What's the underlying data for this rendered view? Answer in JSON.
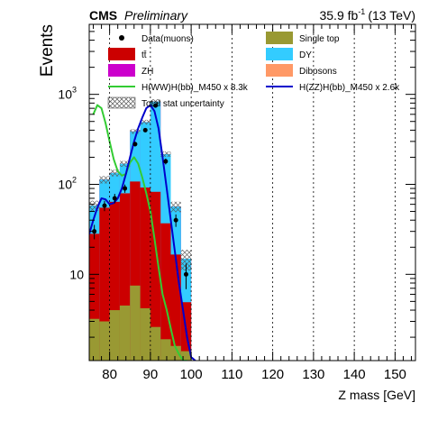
{
  "header": {
    "experiment": "CMS",
    "status": "Preliminary",
    "lumi_value": "35.9 fb",
    "lumi_exponent": "-1",
    "energy": "(13 TeV)"
  },
  "chart_data": {
    "type": "histogram-stack",
    "xlabel": "Z mass [GeV]",
    "ylabel": "Events",
    "xlim": [
      75,
      155
    ],
    "ylim": [
      1.1,
      6000
    ],
    "yscale": "log",
    "grid": "vertical-dashed",
    "x_ticks": [
      80,
      90,
      100,
      110,
      120,
      130,
      140,
      150
    ],
    "y_ticks": [
      {
        "value": 10,
        "label": "10"
      },
      {
        "value": 100,
        "label": "10",
        "exp": "2"
      },
      {
        "value": 1000,
        "label": "10",
        "exp": "3"
      }
    ],
    "bin_edges": [
      75,
      77.5,
      80,
      82.5,
      85,
      87.5,
      90,
      92.5,
      95,
      97.5,
      100
    ],
    "stack": [
      {
        "name": "Single top",
        "color": "#999933",
        "values": [
          3.2,
          3.0,
          4.0,
          4.5,
          7.5,
          4.2,
          2.6,
          1.9,
          1.6,
          1.4
        ]
      },
      {
        "name": "tt̄",
        "color": "#cc0000",
        "values": [
          25,
          52,
          60,
          75,
          100,
          88,
          80,
          35,
          15,
          3.5
        ]
      },
      {
        "name": "DY",
        "color": "#33ccff",
        "values": [
          30,
          58,
          70,
          90,
          280,
          400,
          750,
          180,
          40,
          10
        ]
      },
      {
        "name": "ZH",
        "color": "#cc00cc",
        "values": [
          0,
          0,
          0,
          0,
          0,
          0,
          0,
          0,
          0,
          0
        ]
      },
      {
        "name": "Dibosons",
        "color": "#ff9966",
        "values": [
          0,
          0,
          0,
          0,
          0,
          0,
          0,
          0,
          0,
          0
        ]
      }
    ],
    "data": {
      "name": "Data(muons)",
      "x": [
        76.25,
        78.75,
        81.25,
        83.75,
        86.25,
        88.75,
        91.25,
        93.75,
        96.25,
        98.75
      ],
      "y": [
        30,
        58,
        70,
        90,
        280,
        400,
        750,
        180,
        40,
        10
      ]
    },
    "signals": [
      {
        "name": "H(WW)H(bb)_M450 x 8.3k",
        "color": "#33cc33",
        "x": [
          76,
          77,
          78,
          79,
          80,
          81,
          82,
          83,
          84,
          85,
          86,
          87,
          88,
          89,
          90,
          91,
          92,
          93,
          94,
          95,
          96,
          97,
          98,
          99
        ],
        "y": [
          600,
          760,
          700,
          480,
          300,
          190,
          140,
          125,
          130,
          175,
          200,
          170,
          120,
          80,
          50,
          25,
          12,
          6,
          4,
          2.5,
          1.6,
          1.3,
          1.1,
          1.1
        ]
      },
      {
        "name": "H(ZZ)H(bb)_M450 x 2.6k",
        "color": "#0000cc",
        "x": [
          75,
          76,
          77,
          78,
          79,
          80,
          81,
          82,
          83,
          84,
          85,
          86,
          87,
          88,
          89,
          90,
          91,
          92,
          93,
          94,
          95,
          96,
          97,
          98,
          99,
          100,
          101
        ],
        "y": [
          28,
          40,
          55,
          70,
          68,
          60,
          62,
          70,
          90,
          130,
          200,
          300,
          420,
          550,
          700,
          760,
          650,
          420,
          200,
          90,
          40,
          18,
          8,
          4,
          2,
          1.2,
          1.1
        ]
      }
    ],
    "uncertainty_label": "Total stat uncertainty",
    "legend_placement": "top"
  }
}
